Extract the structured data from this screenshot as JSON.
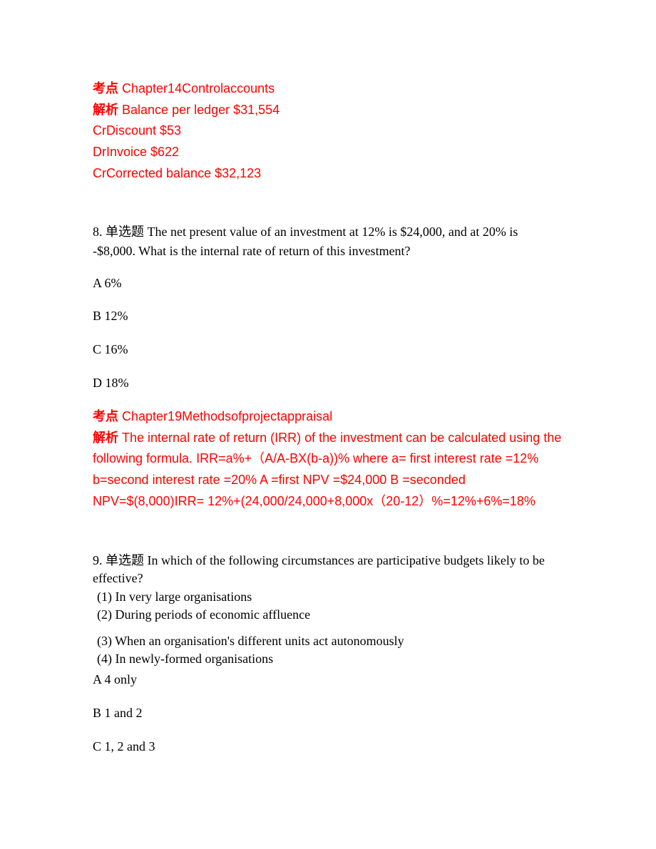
{
  "q7_explanation": {
    "topic_label": "考点",
    "topic_text": "Chapter14Controlaccounts",
    "analysis_label": "解析",
    "line1": "Balance per ledger    $31,554",
    "line2": "CrDiscount                  $53",
    "line3": "DrInvoice                    $622",
    "line4": "CrCorrected balance $32,123"
  },
  "q8": {
    "number": "8.",
    "type": "单选题",
    "text": "The net present value of an investment at 12% is $24,000, and at 20% is -$8,000. What is the internal rate of return of this investment?",
    "options": {
      "a": "A  6%",
      "b": "B  12%",
      "c": "C  16%",
      "d": "D  18%"
    },
    "topic_label": "考点",
    "topic_text": "Chapter19Methodsofprojectappraisal",
    "analysis_label": "解析",
    "analysis_text": "The internal rate of return (IRR) of the investment can be calculated using the following formula.  IRR=a%+（A/A-BX(b-a))%  where a= first interest rate =12%            b=second interest rate =20%            A =first NPV =$24,000            B =seconded NPV=$(8,000)IRR= 12%+(24,000/24,000+8,000x（20-12）%=12%+6%=18%"
  },
  "q9": {
    "number": "9.",
    "type": "单选题",
    "text": "In which of the following circumstances are participative budgets likely to be effective?",
    "sub1": "(1) In very large organisations",
    "sub2": "(2) During periods of economic affluence",
    "sub3": "(3) When an organisation's different units act autonomously",
    "sub4": "(4) In newly-formed organisations",
    "options": {
      "a": "A   4 only",
      "b": "B   1 and 2",
      "c": "C   1, 2 and 3"
    }
  },
  "colors": {
    "red": "#ff0000",
    "black": "#000000",
    "background": "#ffffff"
  }
}
